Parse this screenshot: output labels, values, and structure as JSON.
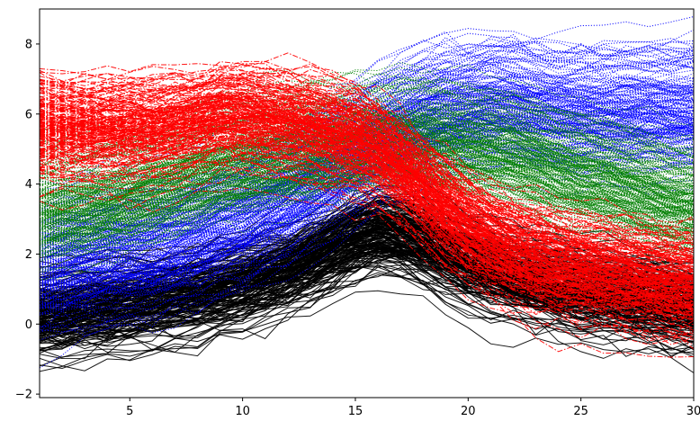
{
  "chart_data": {
    "type": "line",
    "title": "",
    "xlabel": "",
    "ylabel": "",
    "xlim": [
      1,
      30
    ],
    "ylim": [
      -2.1,
      9.0
    ],
    "x": [
      1,
      2,
      3,
      4,
      5,
      6,
      7,
      8,
      9,
      10,
      11,
      12,
      13,
      14,
      15,
      16,
      17,
      18,
      19,
      20,
      21,
      22,
      23,
      24,
      25,
      26,
      27,
      28,
      29,
      30
    ],
    "xticks": [
      5,
      10,
      15,
      20,
      25,
      30
    ],
    "yticks": [
      -2,
      0,
      2,
      4,
      6,
      8
    ],
    "grid": false,
    "legend": "none",
    "series": [
      {
        "color": "#000000",
        "linestyle": "solid",
        "line_count": 200,
        "spread": 0.55,
        "mean_profile": [
          0.2,
          0.25,
          0.35,
          0.4,
          0.5,
          0.6,
          0.7,
          0.8,
          0.95,
          1.1,
          1.3,
          1.5,
          1.8,
          2.1,
          2.4,
          2.6,
          2.5,
          2.3,
          2.0,
          1.7,
          1.5,
          1.3,
          1.15,
          1.0,
          0.9,
          0.8,
          0.7,
          0.6,
          0.5,
          0.4
        ]
      },
      {
        "color": "#0000ff",
        "linestyle": "dotted",
        "line_count": 200,
        "spread": 0.85,
        "mean_profile": [
          1.6,
          1.7,
          1.8,
          1.9,
          2.0,
          2.1,
          2.3,
          2.5,
          2.8,
          3.0,
          3.3,
          3.6,
          4.0,
          4.4,
          4.8,
          5.2,
          5.5,
          5.8,
          6.0,
          6.1,
          6.2,
          6.2,
          6.1,
          6.0,
          6.0,
          6.0,
          6.0,
          6.0,
          6.0,
          6.0
        ]
      },
      {
        "color": "#008000",
        "linestyle": "dotted",
        "line_count": 200,
        "spread": 0.7,
        "mean_profile": [
          3.2,
          3.3,
          3.4,
          3.5,
          3.7,
          3.9,
          4.1,
          4.3,
          4.5,
          4.6,
          4.8,
          4.9,
          5.0,
          5.1,
          5.2,
          5.3,
          5.3,
          5.3,
          5.2,
          5.1,
          5.0,
          4.9,
          4.7,
          4.5,
          4.3,
          4.2,
          4.0,
          3.8,
          3.6,
          3.5
        ]
      },
      {
        "color": "#ff0000",
        "linestyle": "dashdot",
        "line_count": 200,
        "spread": 0.7,
        "mean_profile": [
          5.6,
          5.6,
          5.6,
          5.6,
          5.6,
          5.6,
          5.7,
          5.8,
          6.0,
          6.0,
          5.9,
          5.8,
          5.7,
          5.5,
          5.3,
          5.0,
          4.5,
          3.9,
          3.3,
          2.8,
          2.4,
          2.1,
          1.9,
          1.7,
          1.6,
          1.5,
          1.4,
          1.3,
          1.2,
          1.1
        ]
      }
    ]
  }
}
